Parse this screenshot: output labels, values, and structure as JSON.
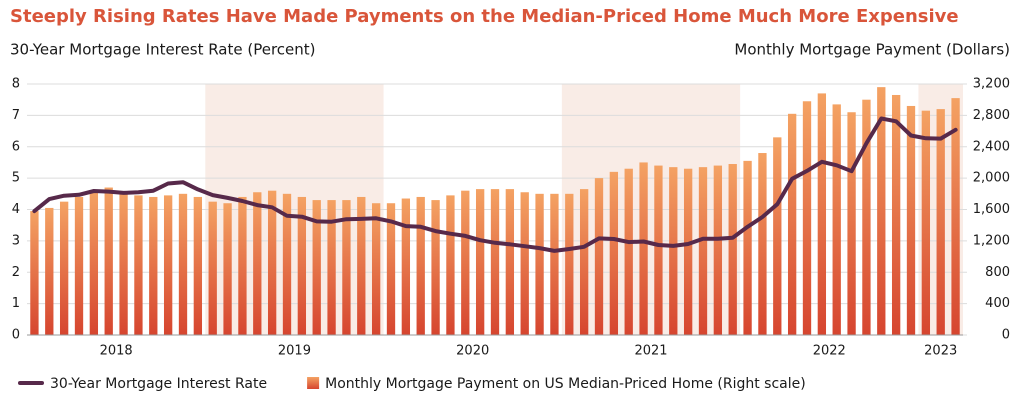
{
  "chart_data": {
    "type": "combo",
    "title": "Steeply Rising Rates Have Made Payments on the Median-Priced Home Much More Expensive",
    "y_label": "30-Year Mortgage Interest Rate (Percent)",
    "y2_label": "Monthly Mortgage Payment (Dollars)",
    "categories": [
      "2018",
      null,
      null,
      null,
      null,
      null,
      null,
      null,
      null,
      null,
      null,
      null,
      "2019",
      null,
      null,
      null,
      null,
      null,
      null,
      null,
      null,
      null,
      null,
      null,
      "2020",
      null,
      null,
      null,
      null,
      null,
      null,
      null,
      null,
      null,
      null,
      null,
      "2021",
      null,
      null,
      null,
      null,
      null,
      null,
      null,
      null,
      null,
      null,
      null,
      "2022",
      null,
      null,
      null,
      null,
      null,
      null,
      null,
      null,
      null,
      null,
      null,
      "2023",
      null,
      null
    ],
    "ylim": [
      0,
      8
    ],
    "yticks": [
      0,
      1,
      2,
      3,
      4,
      5,
      6,
      7,
      8
    ],
    "y2lim": [
      0,
      3200
    ],
    "y2ticks": [
      0,
      400,
      800,
      {
        "value": 1200,
        "label": "1,200"
      },
      {
        "value": 1600,
        "label": "1,600"
      },
      {
        "value": 2000,
        "label": "2,000"
      },
      {
        "value": 2400,
        "label": "2,400"
      },
      {
        "value": 2800,
        "label": "2,800"
      },
      {
        "value": 3200,
        "label": "3,200"
      }
    ],
    "grid": true,
    "series": [
      {
        "name": "30-Year Mortgage Interest Rate",
        "type": "line",
        "color": "#57294a",
        "values": [
          3.95,
          4.33,
          4.44,
          4.47,
          4.59,
          4.57,
          4.53,
          4.55,
          4.6,
          4.83,
          4.87,
          4.64,
          4.46,
          4.37,
          4.27,
          4.14,
          4.07,
          3.8,
          3.77,
          3.62,
          3.61,
          3.69,
          3.7,
          3.72,
          3.62,
          3.47,
          3.45,
          3.31,
          3.23,
          3.16,
          3.02,
          2.94,
          2.89,
          2.83,
          2.77,
          2.68,
          2.74,
          2.81,
          3.08,
          3.06,
          2.96,
          2.98,
          2.87,
          2.84,
          2.9,
          3.07,
          3.07,
          3.1,
          3.45,
          3.76,
          4.17,
          4.98,
          5.23,
          5.52,
          5.41,
          5.22,
          6.11,
          6.9,
          6.81,
          6.36,
          6.27,
          6.26,
          6.54
        ]
      },
      {
        "name": "Monthly Mortgage Payment on US Median-Priced Home (Right scale)",
        "type": "bar",
        "axis": "y2",
        "color": "#d6452f",
        "values": [
          1580,
          1620,
          1700,
          1760,
          1820,
          1880,
          1820,
          1780,
          1760,
          1780,
          1800,
          1760,
          1700,
          1680,
          1760,
          1820,
          1840,
          1800,
          1760,
          1720,
          1720,
          1720,
          1760,
          1680,
          1680,
          1740,
          1760,
          1720,
          1780,
          1840,
          1860,
          1860,
          1860,
          1820,
          1800,
          1800,
          1800,
          1860,
          2000,
          2080,
          2120,
          2200,
          2160,
          2140,
          2120,
          2140,
          2160,
          2180,
          2220,
          2320,
          2520,
          2820,
          2980,
          3080,
          2940,
          2840,
          3000,
          3160,
          3060,
          2920,
          2860,
          2880,
          3020
        ]
      }
    ]
  }
}
